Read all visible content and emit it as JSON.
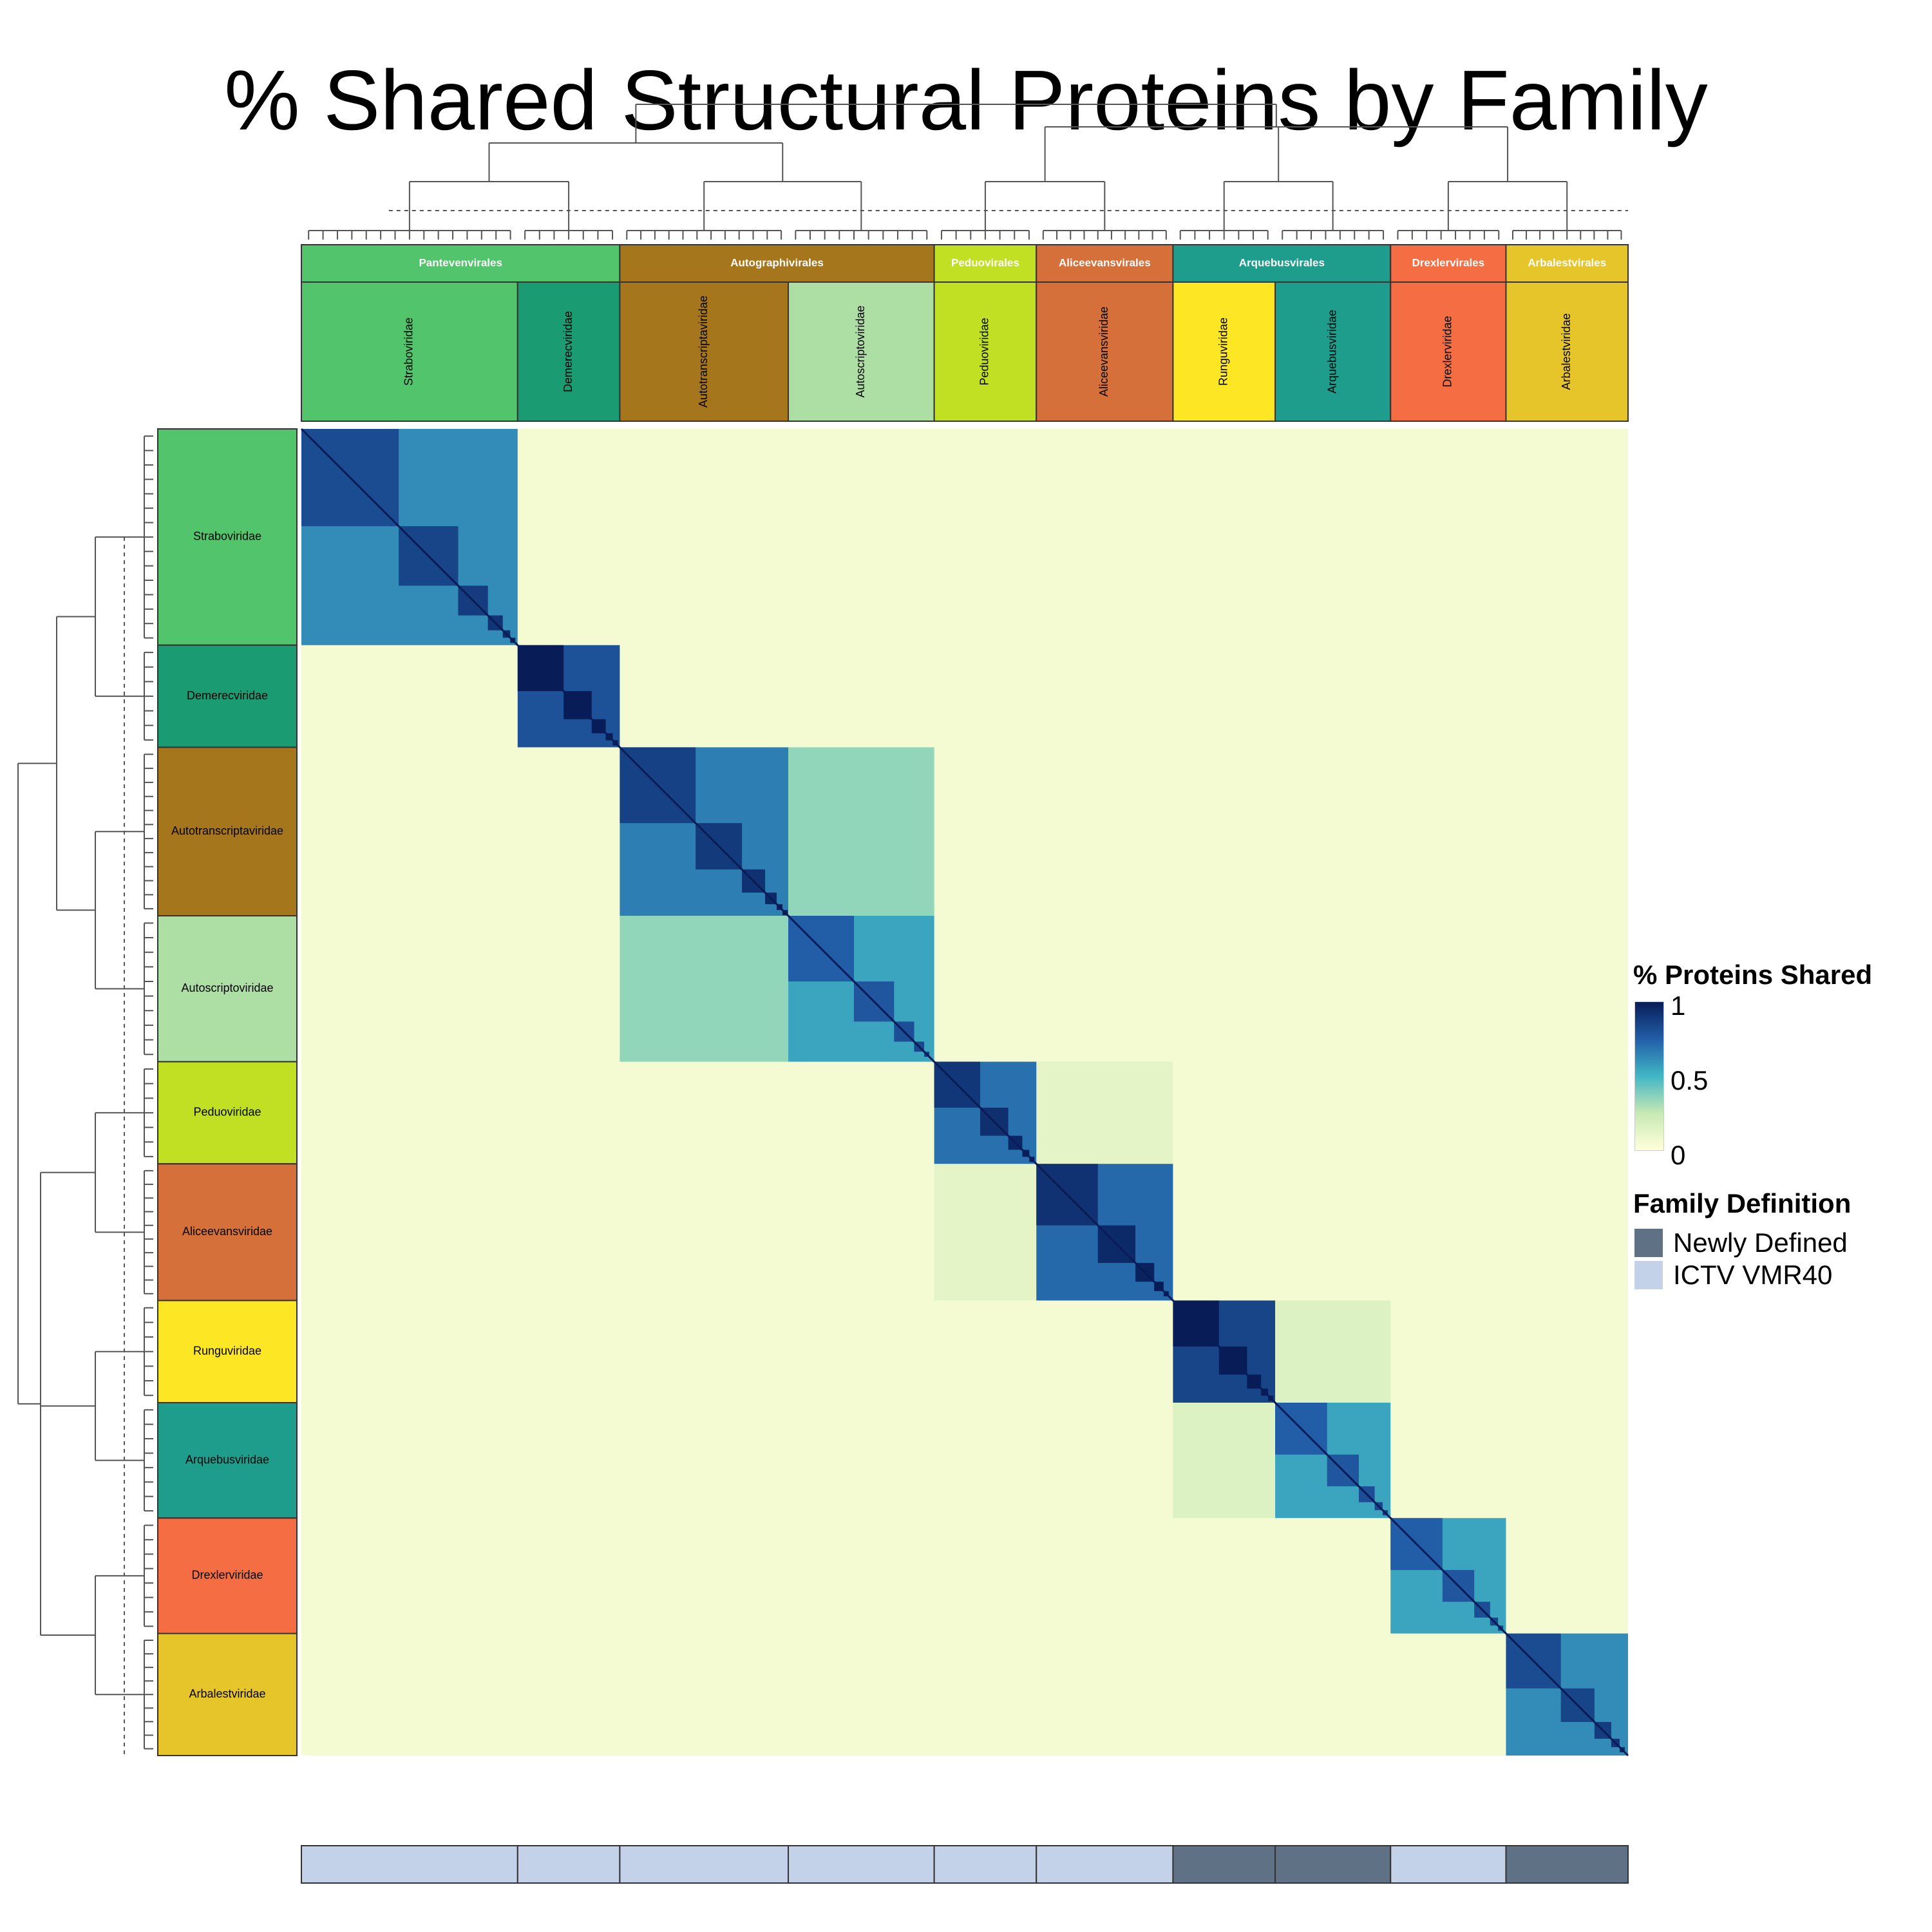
{
  "chart_data": {
    "type": "heatmap",
    "title": "% Shared Structural Proteins by Family",
    "orders": [
      {
        "name": "Pantevenvirales",
        "color": "#52c46b",
        "families": 2
      },
      {
        "name": "Autographivirales",
        "color": "#a6761d",
        "families": 2
      },
      {
        "name": "Peduovirales",
        "color": "#c1df23",
        "families": 1
      },
      {
        "name": "Aliceevansvirales",
        "color": "#d5703a",
        "families": 1
      },
      {
        "name": "Arquebusvirales",
        "color": "#1e9c8c",
        "families": 2
      },
      {
        "name": "Drexlervirales",
        "color": "#f46d43",
        "families": 1
      },
      {
        "name": "Arbalestvirales",
        "color": "#e6c52a",
        "families": 1
      }
    ],
    "families": [
      {
        "name": "Straboviridae",
        "color": "#52c46b",
        "size": 0.163,
        "definition": "ICTV VMR40",
        "within": 0.62
      },
      {
        "name": "Demerecviridae",
        "color": "#1b9b72",
        "size": 0.077,
        "definition": "ICTV VMR40",
        "within": 0.8
      },
      {
        "name": "Autotranscriptaviridae",
        "color": "#a6761d",
        "size": 0.127,
        "definition": "ICTV VMR40",
        "within": 0.66
      },
      {
        "name": "Autoscriptoviridae",
        "color": "#addfa4",
        "size": 0.11,
        "definition": "ICTV VMR40",
        "within": 0.55
      },
      {
        "name": "Peduoviridae",
        "color": "#c1df23",
        "size": 0.077,
        "definition": "ICTV VMR40",
        "within": 0.7
      },
      {
        "name": "Aliceevansviridae",
        "color": "#d5703a",
        "size": 0.103,
        "definition": "ICTV VMR40",
        "within": 0.72
      },
      {
        "name": "Runguviridae",
        "color": "#fde725",
        "size": 0.077,
        "definition": "Newly Defined",
        "within": 0.85
      },
      {
        "name": "Arquebusviridae",
        "color": "#1e9c8c",
        "size": 0.087,
        "definition": "Newly Defined",
        "within": 0.55
      },
      {
        "name": "Drexlerviridae",
        "color": "#f46d43",
        "size": 0.087,
        "definition": "ICTV VMR40",
        "within": 0.55
      },
      {
        "name": "Arbalestviridae",
        "color": "#e6c52a",
        "size": 0.092,
        "definition": "Newly Defined",
        "within": 0.62
      }
    ],
    "cross_blocks": [
      {
        "row": "Autotranscriptaviridae",
        "col": "Autoscriptoviridae",
        "value": 0.35
      },
      {
        "row": "Peduoviridae",
        "col": "Aliceevansviridae",
        "value": 0.12
      },
      {
        "row": "Runguviridae",
        "col": "Arquebusviridae",
        "value": 0.15
      }
    ],
    "background_value": 0.05,
    "colorbar": {
      "title": "% Proteins Shared",
      "min": 0,
      "max": 1,
      "ticks": [
        "1",
        "0.5",
        "0"
      ],
      "colors": [
        "#ffffd9",
        "#c7e9b4",
        "#41b6c4",
        "#225ea8",
        "#081d58"
      ]
    },
    "family_definition_legend": {
      "title": "Family Definition",
      "items": [
        {
          "label": "Newly Defined",
          "color": "#5e7185"
        },
        {
          "label": "ICTV VMR40",
          "color": "#c4d2e9"
        }
      ]
    }
  }
}
